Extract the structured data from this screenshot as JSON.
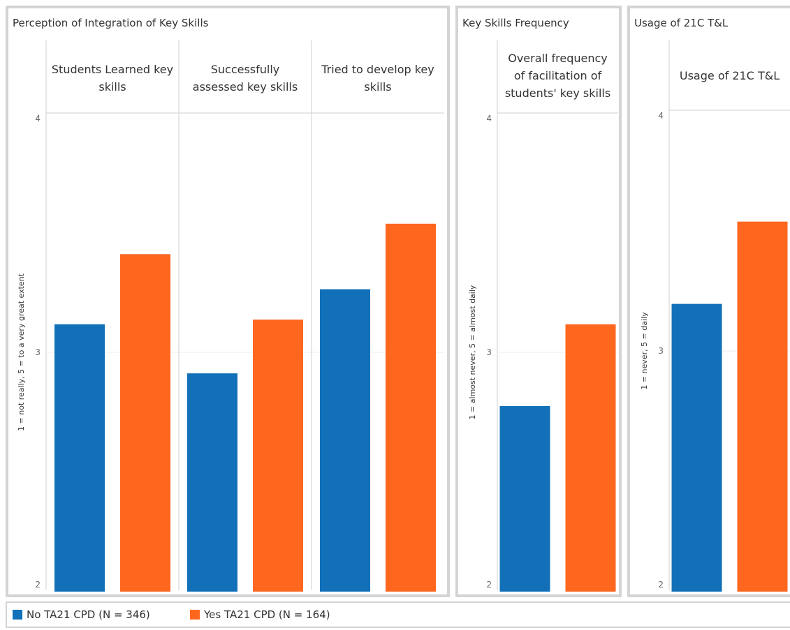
{
  "colors": {
    "no": "#1170b8",
    "yes": "#ff671f",
    "grid": "#cfcfcf",
    "border": "#d4d4d4"
  },
  "legend": {
    "items": [
      {
        "label": "No TA21 CPD (N = 346)",
        "color": "#1170b8"
      },
      {
        "label": "Yes TA21 CPD (N = 164)",
        "color": "#ff671f"
      }
    ]
  },
  "chart_data": [
    {
      "type": "bar",
      "title": "Perception of Integration of Key Skills",
      "ylabel": "1 = not really, 5 = to a very great extent",
      "ylim": [
        2,
        4
      ],
      "yticks": [
        "2",
        "3",
        "4"
      ],
      "categories": [
        "Students Learned key skills",
        "Successfully assessed key skills",
        "Tried to develop key skills"
      ],
      "series": [
        {
          "name": "No TA21 CPD (N = 346)",
          "values": [
            3.12,
            2.91,
            3.27
          ]
        },
        {
          "name": "Yes TA21 CPD (N = 164)",
          "values": [
            3.42,
            3.14,
            3.55
          ]
        }
      ]
    },
    {
      "type": "bar",
      "title": "Key Skills Frequency",
      "ylabel": "1 = almost never, 5 = almost daily",
      "ylim": [
        2,
        4
      ],
      "yticks": [
        "2",
        "3",
        "4"
      ],
      "categories": [
        "Overall frequency of facilitation of students' key skills"
      ],
      "series": [
        {
          "name": "No TA21 CPD (N = 346)",
          "values": [
            2.77
          ]
        },
        {
          "name": "Yes TA21 CPD (N = 164)",
          "values": [
            3.12
          ]
        }
      ]
    },
    {
      "type": "bar",
      "title": "Usage of 21C T&L",
      "ylabel": "1 = never, 5 = daily",
      "ylim": [
        2,
        4
      ],
      "yticks": [
        "2",
        "3",
        "4"
      ],
      "categories": [
        "Usage of 21C T&L"
      ],
      "series": [
        {
          "name": "No TA21 CPD (N = 346)",
          "values": [
            3.2
          ]
        },
        {
          "name": "Yes TA21 CPD (N = 164)",
          "values": [
            3.55
          ]
        }
      ]
    }
  ]
}
